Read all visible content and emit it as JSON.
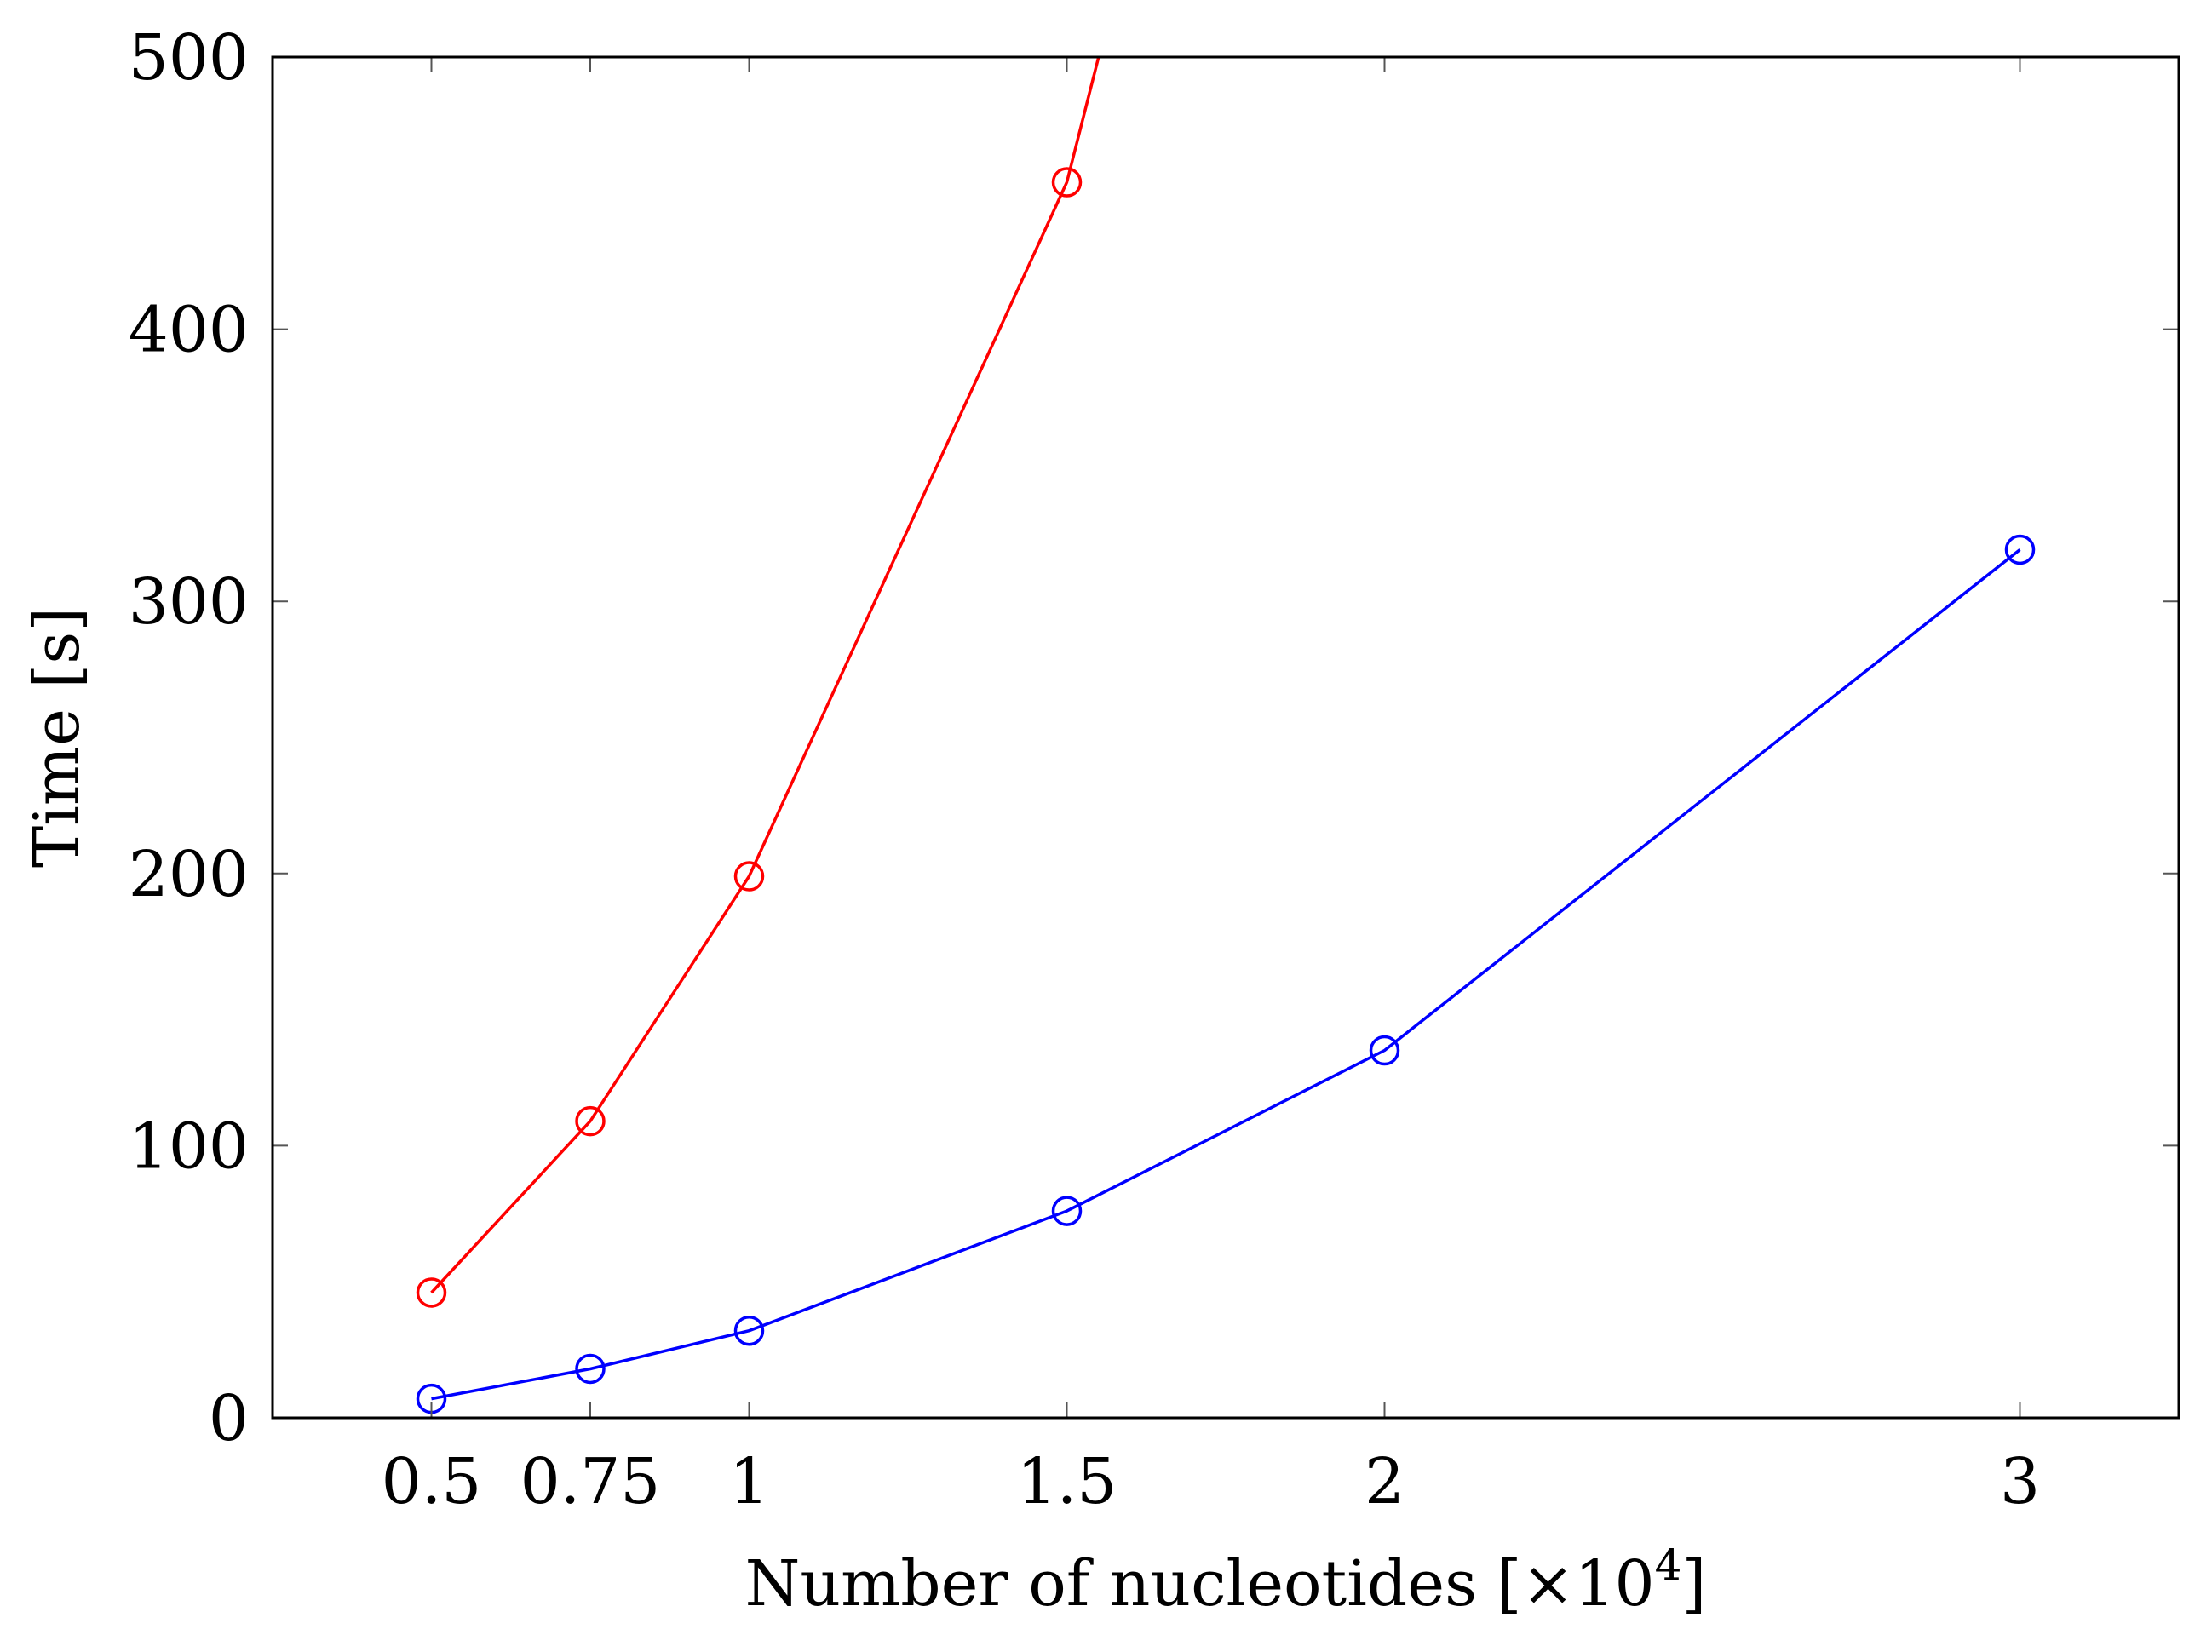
{
  "chart_data": {
    "type": "line",
    "title": "",
    "xlabel": {
      "prefix": "Number of nucleotides [",
      "times": "×10",
      "exponent": "4",
      "suffix": "]"
    },
    "ylabel": "Time [s]",
    "xlim": [
      0.25,
      3.25
    ],
    "ylim": [
      0,
      500
    ],
    "x_ticks": [
      0.5,
      0.75,
      1,
      1.5,
      2,
      3
    ],
    "x_tick_labels": [
      "0.5",
      "0.75",
      "1",
      "1.5",
      "2",
      "3"
    ],
    "y_ticks": [
      0,
      100,
      200,
      300,
      400,
      500
    ],
    "y_tick_labels": [
      "0",
      "100",
      "200",
      "300",
      "400",
      "500"
    ],
    "grid": false,
    "legend": "none",
    "series": [
      {
        "name": "red",
        "color": "#ff0000",
        "marker": "circle-open",
        "x": [
          0.5,
          0.75,
          1,
          1.5,
          1.55
        ],
        "y": [
          46,
          109,
          199,
          454,
          500
        ],
        "marked_points": 4
      },
      {
        "name": "blue",
        "color": "#0000ff",
        "marker": "circle-open",
        "x": [
          0.5,
          0.75,
          1,
          1.5,
          2,
          3
        ],
        "y": [
          7,
          18,
          32,
          76,
          135,
          319
        ],
        "marked_points": 6
      }
    ]
  }
}
